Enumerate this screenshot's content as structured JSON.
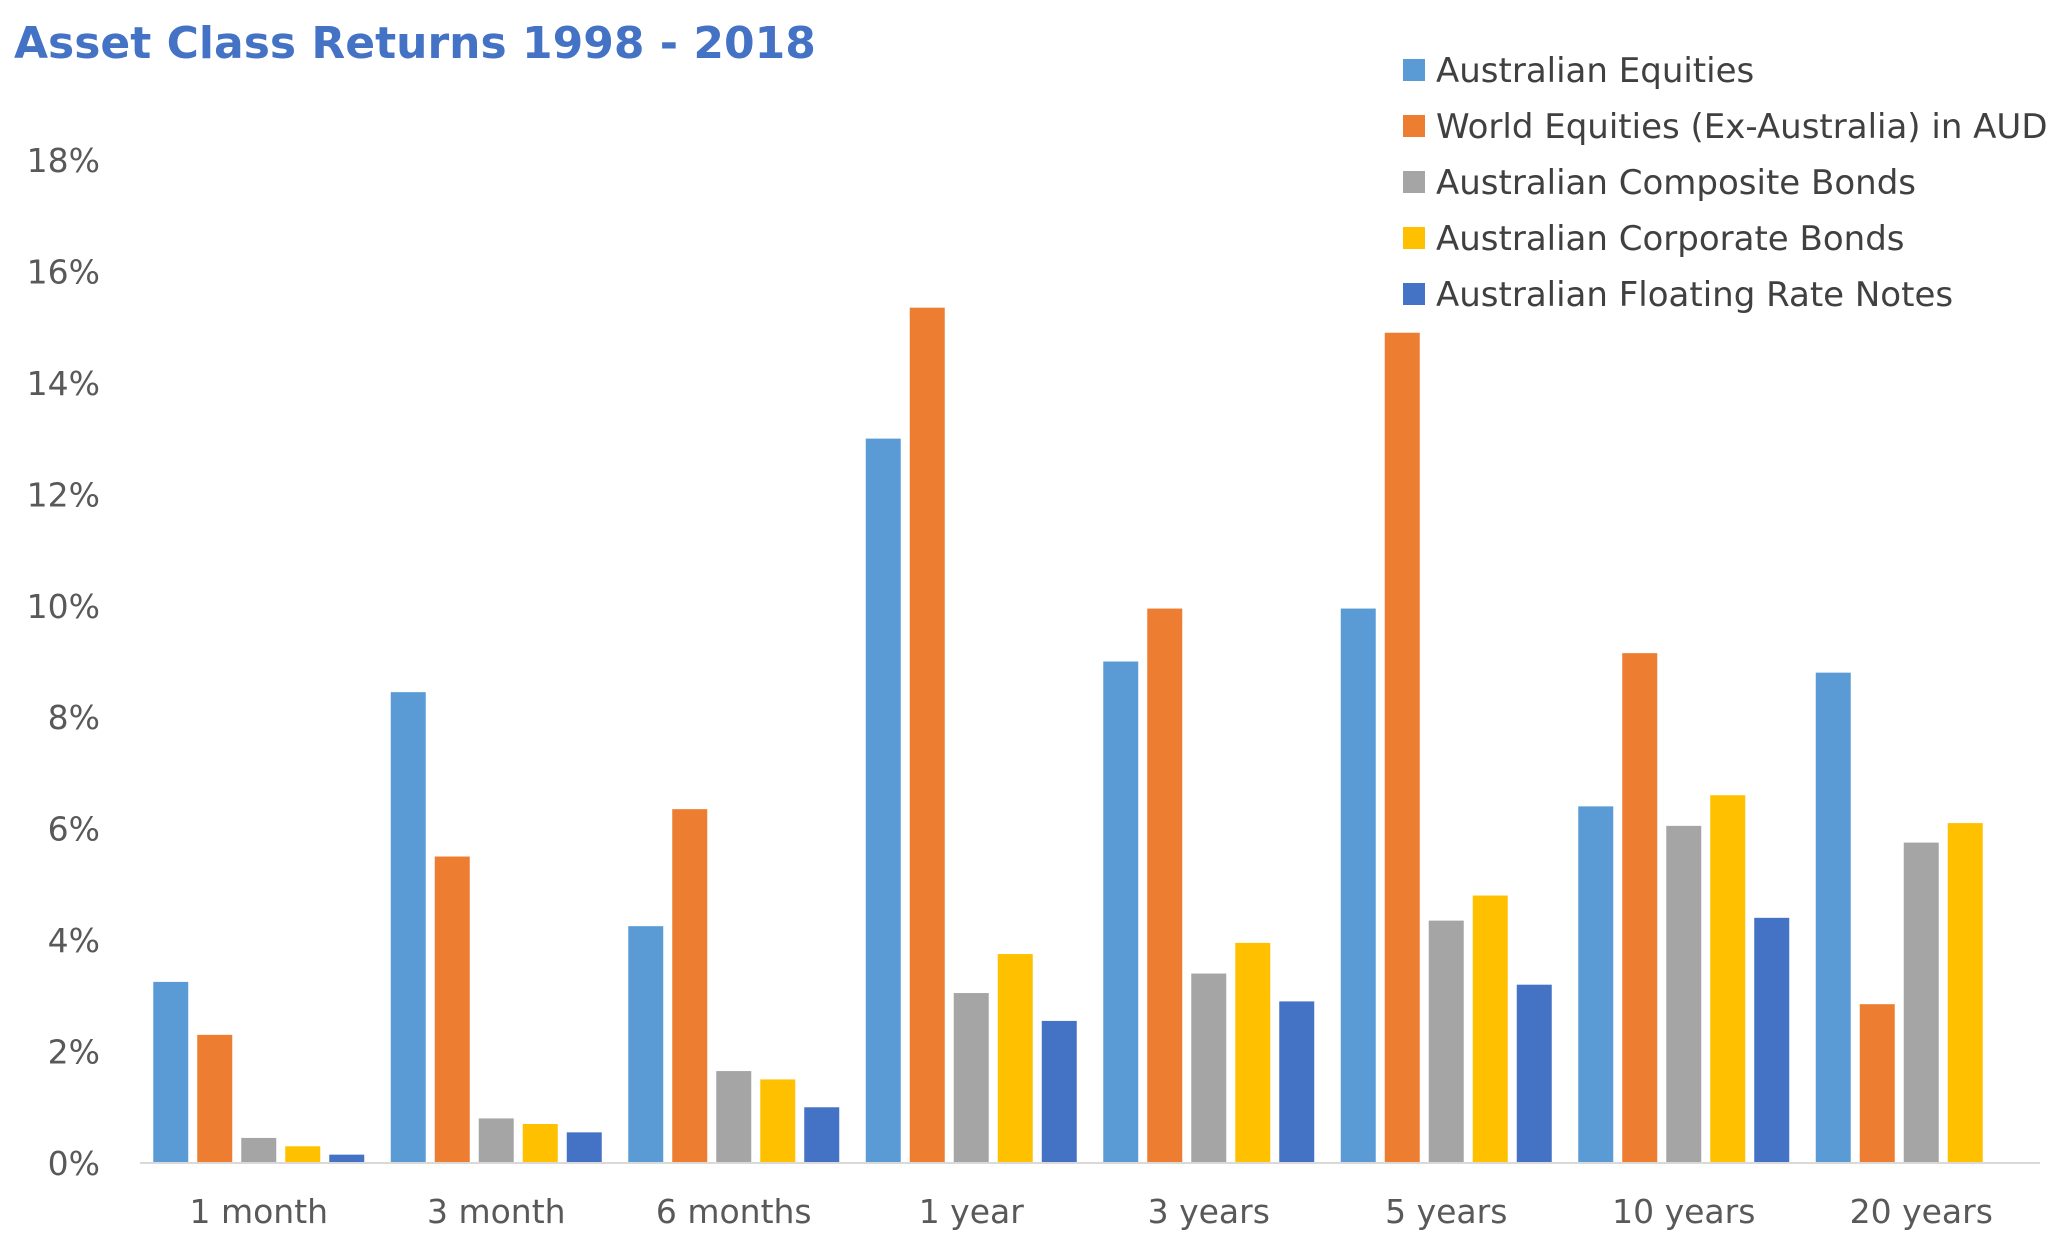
{
  "chart_data": {
    "type": "bar",
    "title": "Asset Class Returns 1998 - 2018",
    "xlabel": "",
    "ylabel": "",
    "ylim": [
      0,
      18
    ],
    "y_ticks": [
      "0%",
      "2%",
      "4%",
      "6%",
      "8%",
      "10%",
      "12%",
      "14%",
      "16%",
      "18%"
    ],
    "grid": false,
    "legend_position": "top-right",
    "categories": [
      "1 month",
      "3 month",
      "6 months",
      "1 year",
      "3 years",
      "5 years",
      "10 years",
      "20 years"
    ],
    "series": [
      {
        "name": "Australian Equities",
        "color": "#5B9BD5",
        "values": [
          3.25,
          8.45,
          4.25,
          13.0,
          9.0,
          9.95,
          6.4,
          8.8
        ]
      },
      {
        "name": "World Equities (Ex-Australia) in AUD",
        "color": "#ED7D31",
        "values": [
          2.3,
          5.5,
          6.35,
          15.35,
          9.95,
          14.9,
          9.15,
          2.85
        ]
      },
      {
        "name": "Australian Composite Bonds",
        "color": "#A5A5A5",
        "values": [
          0.45,
          0.8,
          1.65,
          3.05,
          3.4,
          4.35,
          6.05,
          5.75
        ]
      },
      {
        "name": "Australian Corporate Bonds",
        "color": "#FFC000",
        "values": [
          0.3,
          0.7,
          1.5,
          3.75,
          3.95,
          4.8,
          6.6,
          6.1
        ]
      },
      {
        "name": "Australian Floating Rate Notes",
        "color": "#4472C4",
        "values": [
          0.15,
          0.55,
          1.0,
          2.55,
          2.9,
          3.2,
          4.4,
          null
        ]
      }
    ]
  }
}
